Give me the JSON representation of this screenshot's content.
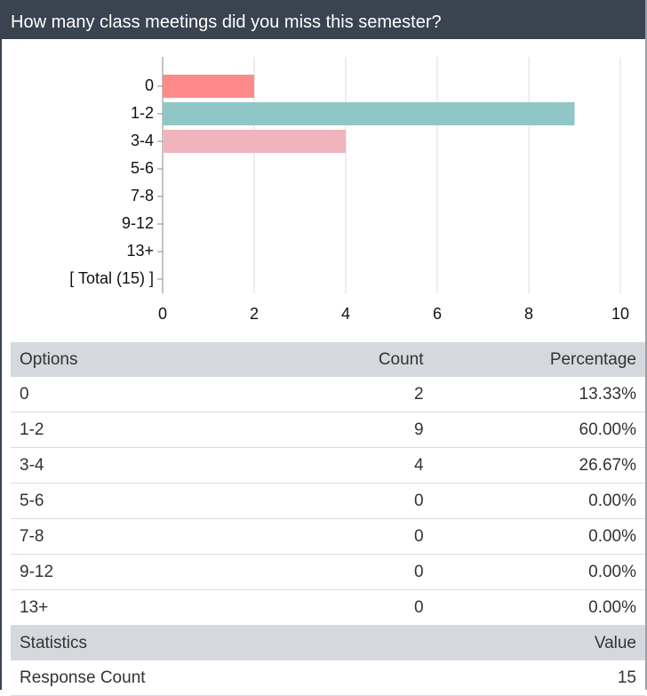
{
  "header": {
    "title": "How many class meetings did you miss this semester?"
  },
  "chart_data": {
    "type": "bar",
    "orientation": "horizontal",
    "categories": [
      "0",
      "1-2",
      "3-4",
      "5-6",
      "7-8",
      "9-12",
      "13+",
      "[ Total (15) ]"
    ],
    "values": [
      2,
      9,
      4,
      0,
      0,
      0,
      0,
      null
    ],
    "colors": [
      "#ff8a8a",
      "#91c6c6",
      "#f0b5bc",
      null,
      null,
      null,
      null,
      null
    ],
    "xlim": [
      0,
      10
    ],
    "xticks": [
      0,
      2,
      4,
      6,
      8,
      10
    ],
    "grid": true
  },
  "table": {
    "columns": [
      "Options",
      "Count",
      "Percentage"
    ],
    "rows": [
      [
        "0",
        "2",
        "13.33%"
      ],
      [
        "1-2",
        "9",
        "60.00%"
      ],
      [
        "3-4",
        "4",
        "26.67%"
      ],
      [
        "5-6",
        "0",
        "0.00%"
      ],
      [
        "7-8",
        "0",
        "0.00%"
      ],
      [
        "9-12",
        "0",
        "0.00%"
      ],
      [
        "13+",
        "0",
        "0.00%"
      ]
    ]
  },
  "statistics": {
    "columns": [
      "Statistics",
      "Value"
    ],
    "rows": [
      [
        "Response Count",
        "15"
      ]
    ]
  }
}
